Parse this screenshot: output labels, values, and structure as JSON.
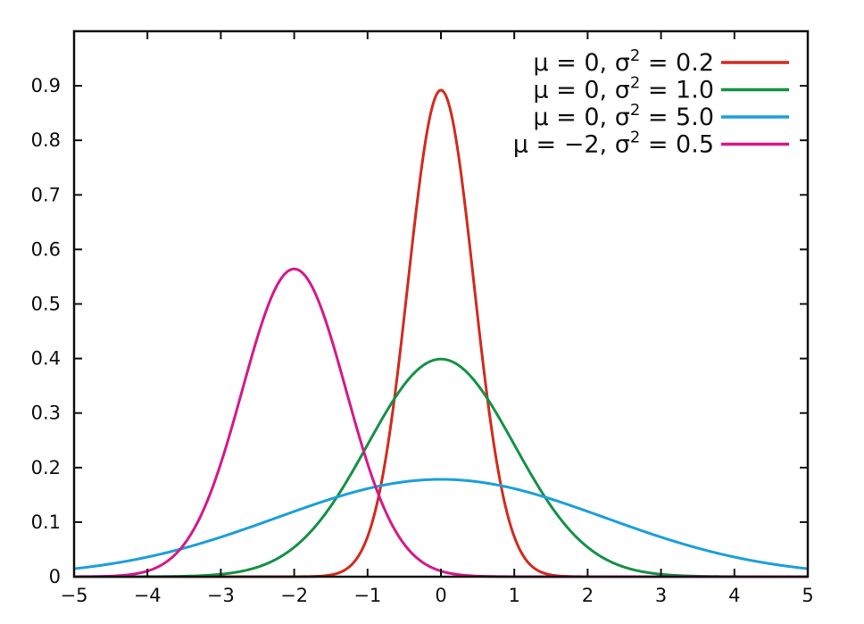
{
  "chart_data": {
    "type": "line",
    "title": "",
    "xlabel": "",
    "ylabel": "",
    "xlim": [
      -5,
      5
    ],
    "ylim": [
      0,
      1
    ],
    "x_ticks": [
      -5,
      -4,
      -3,
      -2,
      -1,
      0,
      1,
      2,
      3,
      4,
      5
    ],
    "x_tick_labels": [
      "−5",
      "−4",
      "−3",
      "−2",
      "−1",
      "0",
      "1",
      "2",
      "3",
      "4",
      "5"
    ],
    "y_ticks": [
      0,
      0.1,
      0.2,
      0.3,
      0.4,
      0.5,
      0.6,
      0.7,
      0.8,
      0.9
    ],
    "y_tick_labels": [
      "0",
      "0.1",
      "0.2",
      "0.3",
      "0.4",
      "0.5",
      "0.6",
      "0.7",
      "0.8",
      "0.9"
    ],
    "grid": false,
    "legend_position": "top-right",
    "series": [
      {
        "name": "μ = 0, σ² = 0.2",
        "legend": {
          "mu": "0",
          "sigma2": "0.2"
        },
        "mu": 0,
        "sigma2": 0.2,
        "color": "#d42a1e"
      },
      {
        "name": "μ = 0, σ² = 1.0",
        "legend": {
          "mu": "0",
          "sigma2": "1.0"
        },
        "mu": 0,
        "sigma2": 1.0,
        "color": "#149245"
      },
      {
        "name": "μ = 0, σ² = 5.0",
        "legend": {
          "mu": "0",
          "sigma2": "5.0"
        },
        "mu": 0,
        "sigma2": 5.0,
        "color": "#1b9fdb"
      },
      {
        "name": "μ = −2, σ² = 0.5",
        "legend": {
          "mu": "−2",
          "sigma2": "0.5"
        },
        "mu": -2,
        "sigma2": 0.5,
        "color": "#d6188a"
      }
    ]
  }
}
